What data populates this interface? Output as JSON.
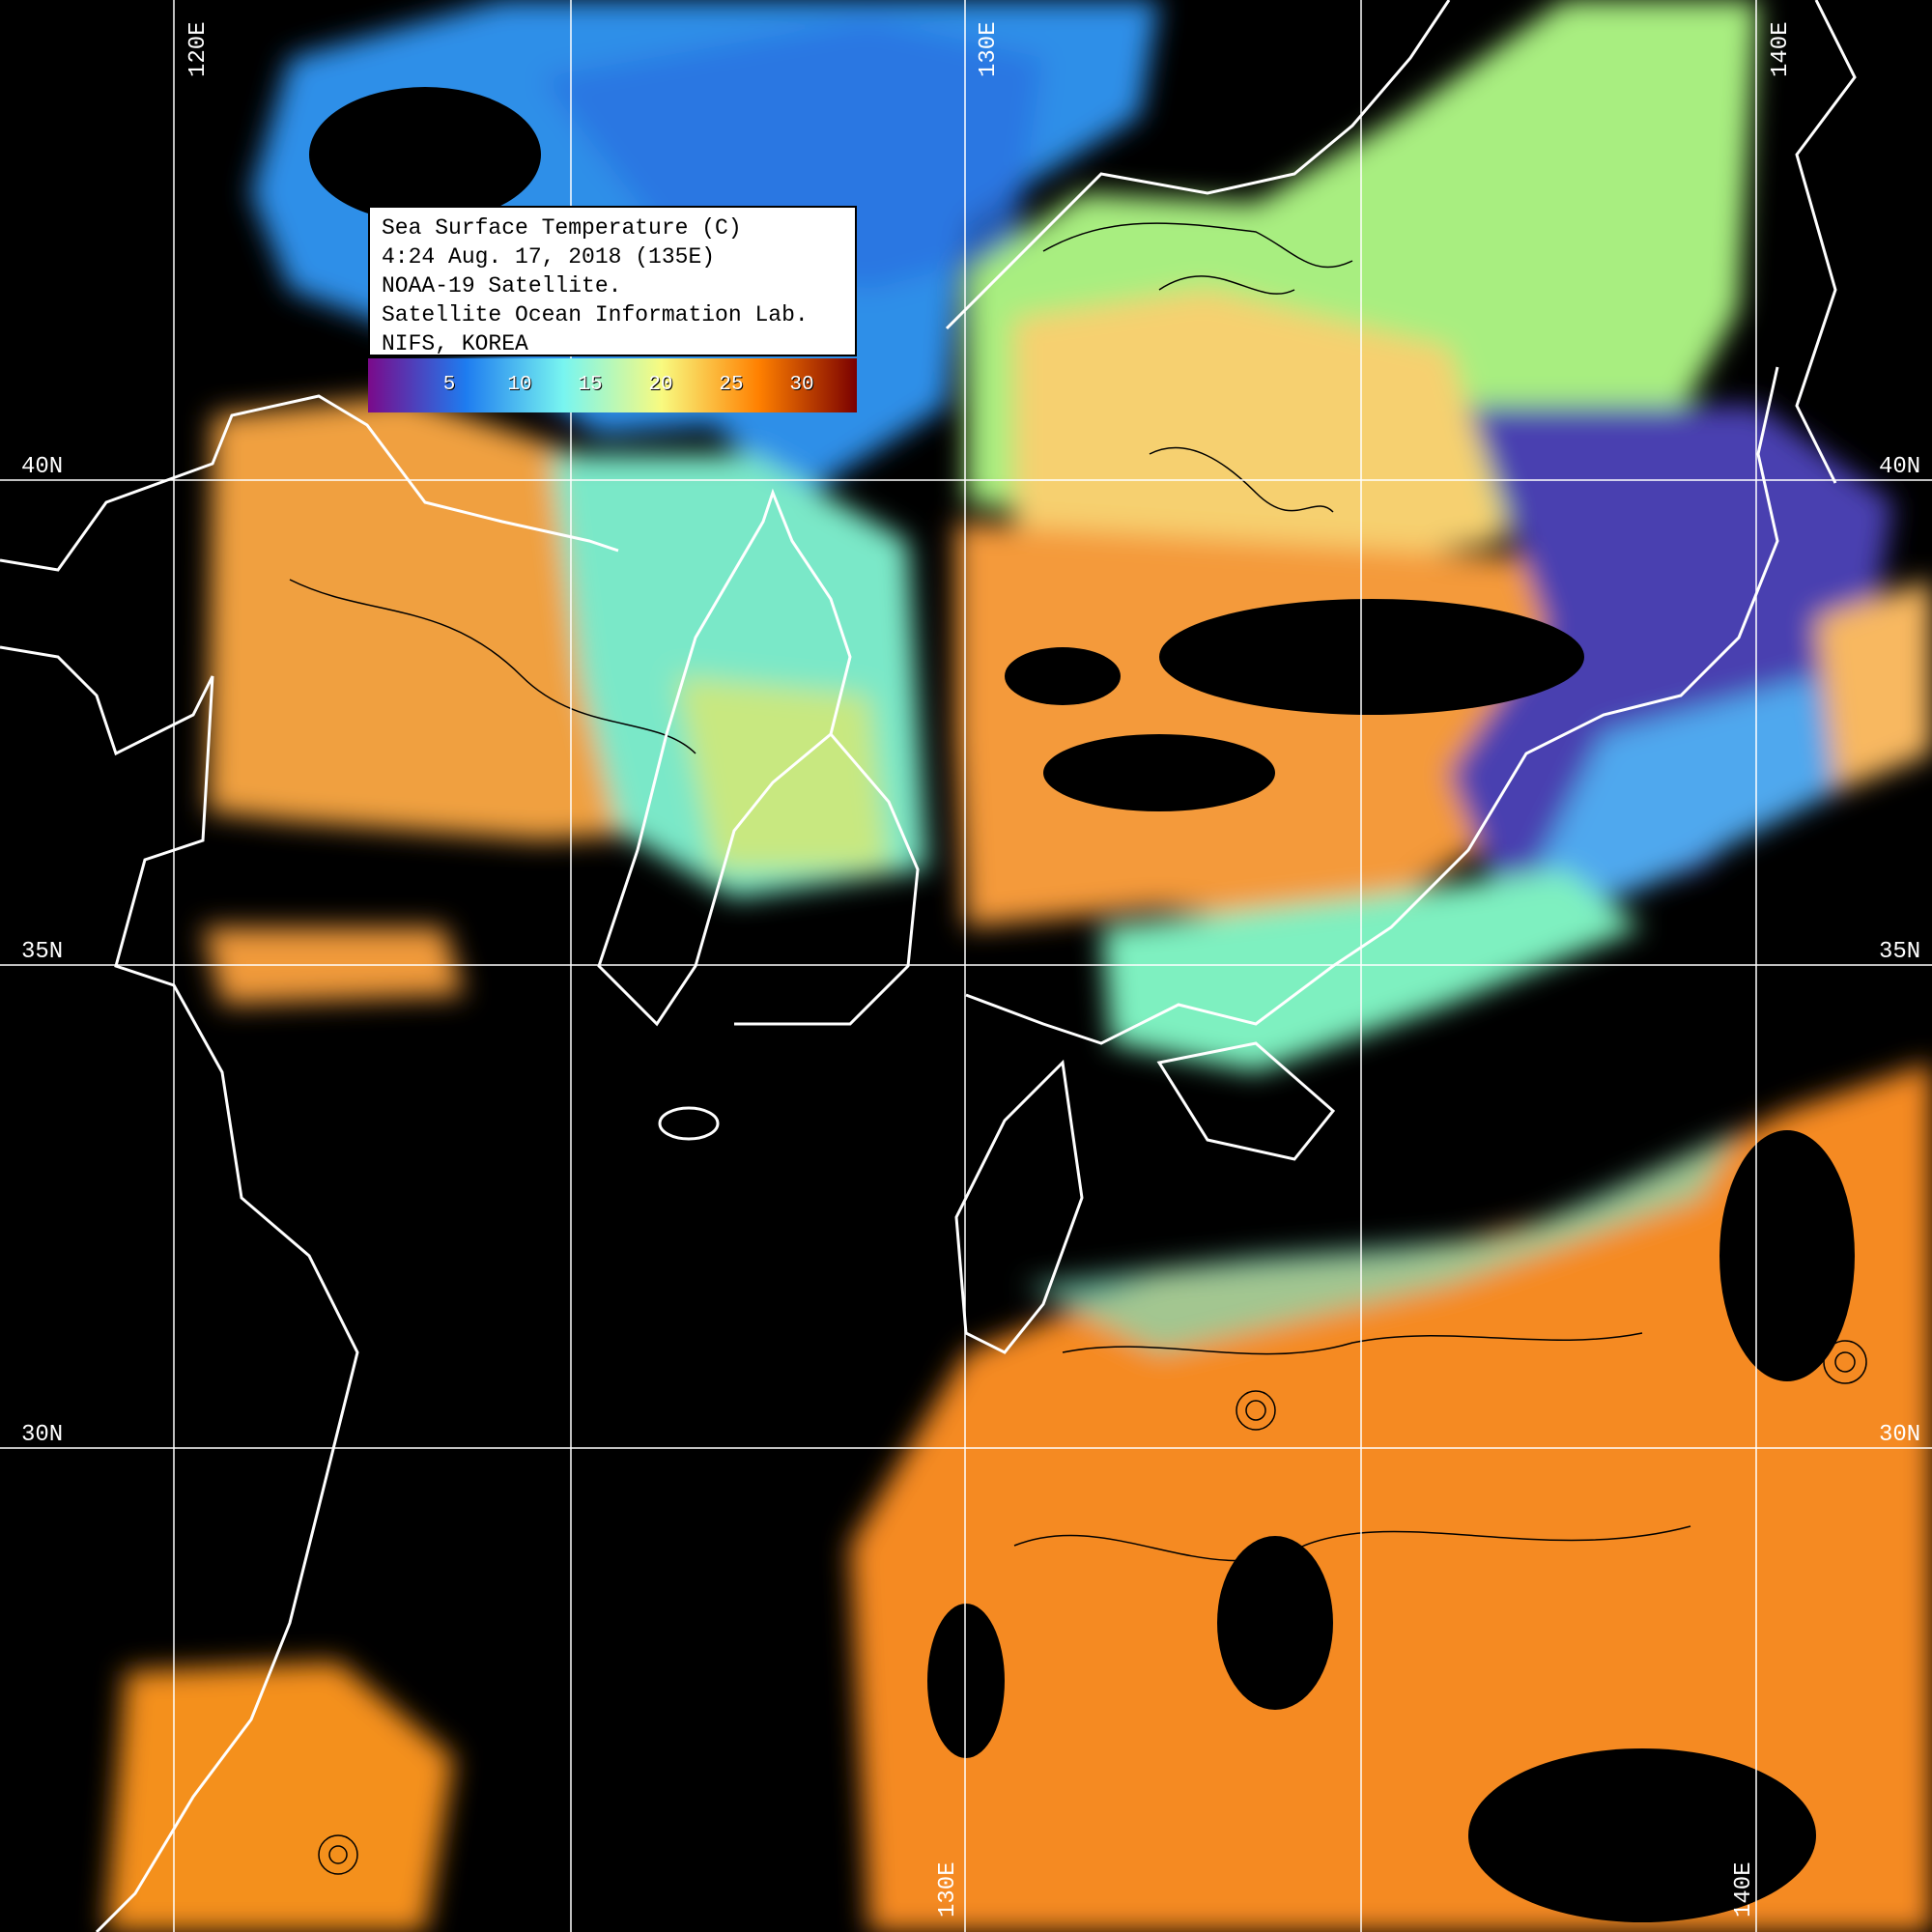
{
  "legend": {
    "lines": [
      "Sea Surface Temperature (C)",
      "4:24 Aug. 17, 2018 (135E)",
      "NOAA-19 Satellite.",
      "Satellite Ocean Information Lab.",
      "NIFS, KOREA"
    ],
    "colorbar": {
      "ticks": [
        "5",
        "10",
        "15",
        "20",
        "25",
        "30"
      ],
      "colors": [
        "#7a0a8a",
        "#1e7cf0",
        "#78f5f0",
        "#f8fa80",
        "#ff8000",
        "#7a0000"
      ]
    }
  },
  "grid": {
    "lon_labels_top": [
      "120E",
      "130E",
      "140E"
    ],
    "lon_labels_bottom": [
      "130E",
      "140E"
    ],
    "lat_labels_left": [
      "40N",
      "35N",
      "30N"
    ],
    "lat_labels_right": [
      "40N",
      "35N",
      "30N"
    ],
    "line_color": "#ffffff"
  },
  "colors": {
    "land_no_data": "#000000",
    "coastline": "#ffffff",
    "contour": "#000000"
  }
}
